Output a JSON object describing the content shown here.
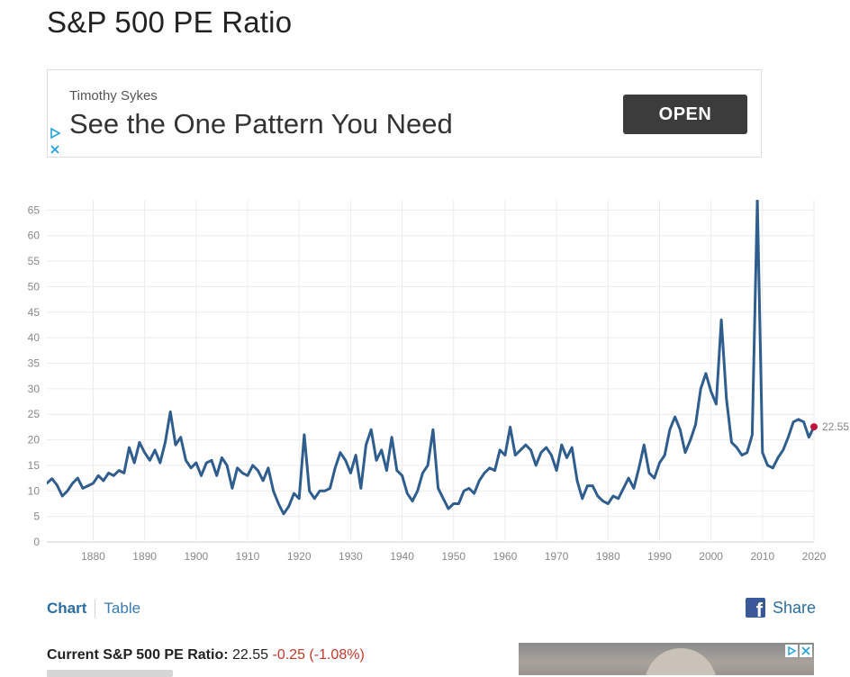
{
  "page": {
    "title": "S&P 500 PE Ratio"
  },
  "ad": {
    "advertiser": "Timothy Sykes",
    "headline": "See the One Pattern You Need",
    "button_label": "OPEN",
    "choices_icon": "adchoices-icon",
    "close_icon": "close-icon"
  },
  "chart_data": {
    "type": "line",
    "title": "",
    "xlabel": "",
    "ylabel": "",
    "xlim": [
      1871,
      2020
    ],
    "ylim": [
      0,
      67
    ],
    "yticks": [
      0,
      5,
      10,
      15,
      20,
      25,
      30,
      35,
      40,
      45,
      50,
      55,
      60,
      65
    ],
    "xticks": [
      1880,
      1890,
      1900,
      1910,
      1920,
      1930,
      1940,
      1950,
      1960,
      1970,
      1980,
      1990,
      2000,
      2010,
      2020
    ],
    "grid": true,
    "line_color": "#2f5d8e",
    "marker_color": "#c0143c",
    "last_value_label": "22.55",
    "series": [
      {
        "x": [
          1871,
          1872,
          1873,
          1874,
          1875,
          1876,
          1877,
          1878,
          1879,
          1880,
          1881,
          1882,
          1883,
          1884,
          1885,
          1886,
          1887,
          1888,
          1889,
          1890,
          1891,
          1892,
          1893,
          1894,
          1895,
          1896,
          1897,
          1898,
          1899,
          1900,
          1901,
          1902,
          1903,
          1904,
          1905,
          1906,
          1907,
          1908,
          1909,
          1910,
          1911,
          1912,
          1913,
          1914,
          1915,
          1916,
          1917,
          1918,
          1919,
          1920,
          1921,
          1922,
          1923,
          1924,
          1925,
          1926,
          1927,
          1928,
          1929,
          1930,
          1931,
          1932,
          1933,
          1934,
          1935,
          1936,
          1937,
          1938,
          1939,
          1940,
          1941,
          1942,
          1943,
          1944,
          1945,
          1946,
          1947,
          1948,
          1949,
          1950,
          1951,
          1952,
          1953,
          1954,
          1955,
          1956,
          1957,
          1958,
          1959,
          1960,
          1961,
          1962,
          1963,
          1964,
          1965,
          1966,
          1967,
          1968,
          1969,
          1970,
          1971,
          1972,
          1973,
          1974,
          1975,
          1976,
          1977,
          1978,
          1979,
          1980,
          1981,
          1982,
          1983,
          1984,
          1985,
          1986,
          1987,
          1988,
          1989,
          1990,
          1991,
          1992,
          1993,
          1994,
          1995,
          1996,
          1997,
          1998,
          1999,
          2000,
          2001,
          2002,
          2003,
          2004,
          2005,
          2006,
          2007,
          2008,
          2009,
          2010,
          2011,
          2012,
          2013,
          2014,
          2015,
          2016,
          2017,
          2018,
          2019,
          2020
        ],
        "values": [
          11.5,
          12.4,
          11.1,
          9.0,
          10.0,
          11.5,
          12.5,
          10.5,
          11.0,
          11.5,
          13.0,
          12.0,
          13.5,
          13.0,
          14.0,
          13.5,
          18.5,
          15.5,
          19.5,
          17.5,
          16.0,
          18.0,
          15.5,
          19.5,
          25.5,
          19.0,
          20.5,
          16.0,
          14.5,
          15.5,
          13.0,
          15.5,
          16.0,
          13.0,
          16.5,
          15.0,
          10.5,
          14.5,
          13.5,
          13.0,
          15.0,
          14.0,
          12.0,
          14.5,
          10.0,
          7.5,
          5.5,
          7.0,
          9.5,
          8.5,
          21.0,
          10.0,
          8.5,
          10.0,
          10.0,
          10.5,
          14.5,
          17.5,
          16.0,
          13.5,
          17.0,
          10.5,
          19.0,
          22.0,
          16.0,
          18.0,
          14.0,
          20.5,
          14.0,
          13.0,
          9.5,
          8.0,
          10.0,
          13.5,
          15.0,
          22.0,
          10.5,
          8.5,
          6.5,
          7.5,
          7.5,
          10.0,
          10.5,
          9.5,
          12.0,
          13.5,
          14.5,
          14.0,
          18.0,
          17.0,
          22.5,
          17.0,
          18.0,
          19.0,
          18.0,
          15.0,
          17.5,
          18.5,
          17.0,
          14.0,
          19.0,
          16.5,
          18.5,
          12.0,
          8.5,
          11.0,
          11.0,
          9.0,
          8.0,
          7.5,
          9.0,
          8.5,
          10.5,
          12.5,
          10.5,
          14.5,
          19.0,
          13.5,
          12.5,
          15.5,
          17.0,
          22.0,
          24.5,
          22.0,
          17.5,
          20.0,
          23.0,
          30.0,
          33.0,
          29.5,
          27.0,
          43.5,
          28.0,
          19.5,
          18.5,
          17.0,
          17.5,
          21.0,
          67.0,
          17.5,
          15.0,
          14.5,
          16.5,
          18.0,
          20.5,
          23.5,
          24.0,
          23.5,
          20.5,
          22.55
        ]
      }
    ]
  },
  "tabs": {
    "chart": "Chart",
    "table": "Table"
  },
  "share": {
    "label": "Share",
    "icon": "facebook-icon"
  },
  "current": {
    "label": "Current S&P 500 PE Ratio:",
    "value": "22.55",
    "change": "-0.25",
    "change_pct": "(-1.08%)"
  }
}
